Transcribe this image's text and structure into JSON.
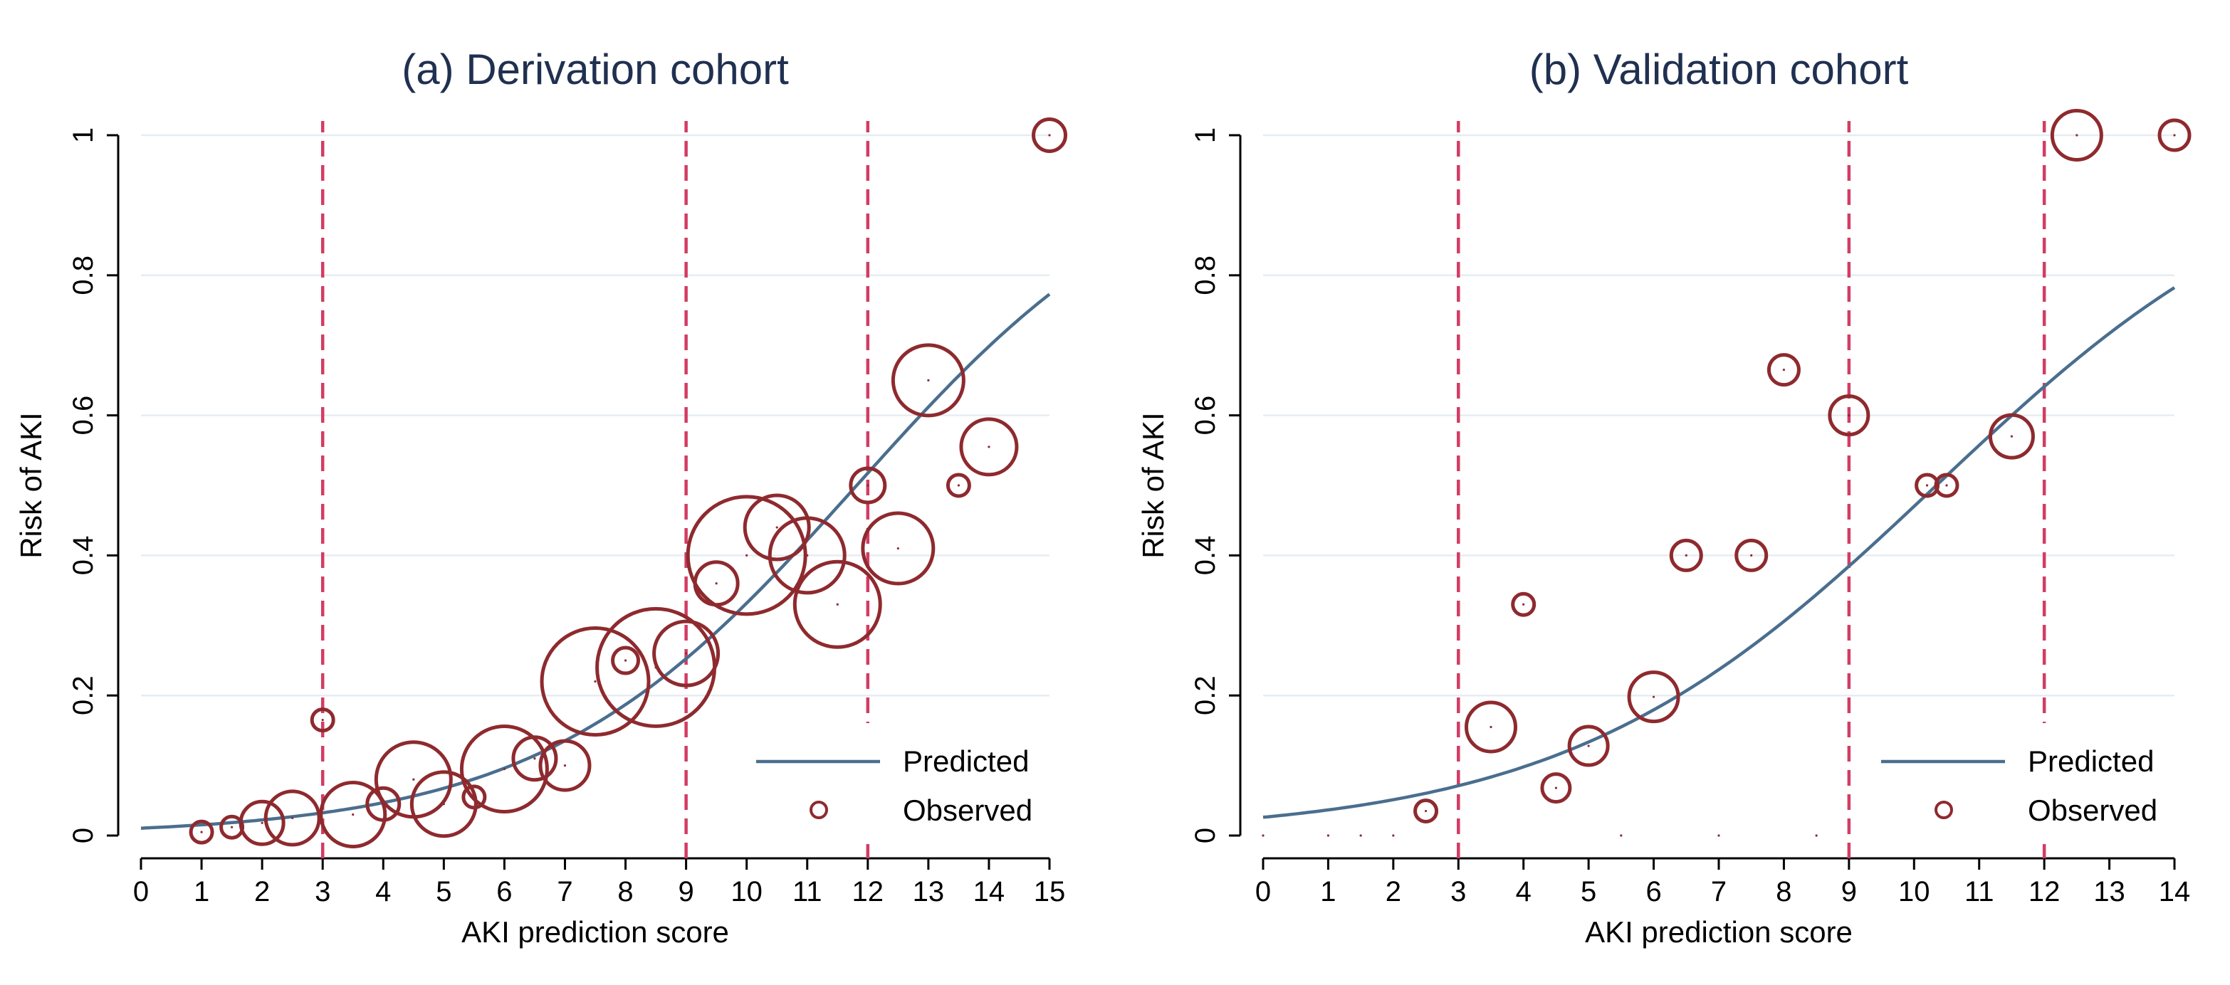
{
  "chart_data": [
    {
      "type": "scatter",
      "title": "(a) Derivation cohort",
      "xlabel": "AKI prediction score",
      "ylabel": "Risk of AKI",
      "xlim": [
        0,
        15
      ],
      "ylim": [
        0,
        1
      ],
      "xticks": [
        "0",
        "1",
        "2",
        "3",
        "4",
        "5",
        "6",
        "7",
        "8",
        "9",
        "10",
        "11",
        "12",
        "13",
        "14",
        "15"
      ],
      "yticks": [
        "0",
        "0.2",
        "0.4",
        "0.6",
        "0.8",
        "1"
      ],
      "cutoffs": [
        3,
        9,
        12
      ],
      "legend": {
        "position": "bottom-right",
        "predicted_label": "Predicted",
        "observed_label": "Observed"
      },
      "predicted": {
        "name": "Predicted",
        "intercept": -4.55,
        "slope": 0.385
      },
      "observed": {
        "name": "Observed",
        "x": [
          1,
          1.5,
          2,
          2.5,
          3,
          3.5,
          4,
          4.5,
          5,
          5.5,
          6,
          6.5,
          7,
          7.5,
          8,
          8.5,
          9,
          9.5,
          10,
          10.5,
          11,
          11.5,
          12,
          12.5,
          13,
          13.5,
          14,
          15
        ],
        "y": [
          0.005,
          0.012,
          0.018,
          0.025,
          0.165,
          0.03,
          0.045,
          0.08,
          0.045,
          0.055,
          0.095,
          0.11,
          0.1,
          0.22,
          0.25,
          0.24,
          0.26,
          0.36,
          0.4,
          0.44,
          0.4,
          0.33,
          0.5,
          0.41,
          0.65,
          0.5,
          0.555,
          1.0
        ],
        "size": [
          1,
          1,
          2,
          2.5,
          1,
          3,
          1.5,
          3.5,
          3,
          1,
          4,
          2,
          2.3,
          5,
          1.2,
          5.5,
          3,
          2,
          5.5,
          3,
          3.5,
          4,
          1.6,
          3.3,
          3.3,
          1,
          2.6,
          1.5
        ]
      }
    },
    {
      "type": "scatter",
      "title": "(b) Validation cohort",
      "xlabel": "AKI prediction score",
      "ylabel": "Risk of AKI",
      "xlim": [
        0,
        14
      ],
      "ylim": [
        0,
        1
      ],
      "xticks": [
        "0",
        "1",
        "2",
        "3",
        "4",
        "5",
        "6",
        "7",
        "8",
        "9",
        "10",
        "11",
        "12",
        "13",
        "14"
      ],
      "yticks": [
        "0",
        "0.2",
        "0.4",
        "0.6",
        "0.8",
        "1"
      ],
      "cutoffs": [
        3,
        9,
        12
      ],
      "legend": {
        "position": "bottom-right",
        "predicted_label": "Predicted",
        "observed_label": "Observed"
      },
      "predicted": {
        "name": "Predicted",
        "intercept": -3.62,
        "slope": 0.35
      },
      "observed": {
        "name": "Observed",
        "x": [
          0,
          1,
          1.5,
          2,
          2.5,
          3.5,
          4,
          4.5,
          5,
          5.5,
          6,
          6.5,
          7,
          7.5,
          8,
          8.5,
          9,
          10.2,
          10.5,
          11.5,
          12.5,
          14
        ],
        "y": [
          0,
          0,
          0,
          0,
          0.035,
          0.155,
          0.33,
          0.068,
          0.128,
          0,
          0.198,
          0.4,
          0,
          0.4,
          0.665,
          0,
          0.6,
          0.5,
          0.5,
          0.57,
          1.0,
          1.0
        ],
        "size": [
          0,
          0,
          0,
          0,
          1,
          2.3,
          1,
          1.3,
          1.8,
          0,
          2.3,
          1.4,
          0,
          1.4,
          1.4,
          0,
          1.8,
          1,
          1,
          2,
          2.3,
          1.4
        ]
      }
    }
  ],
  "colors": {
    "predicted_line": "#4a6e8e",
    "observed_marker": "#8e2a2e",
    "cutoff_line": "#d23c64",
    "grid": "#e6edf2",
    "axis": "#000000",
    "title_text": "#203050"
  }
}
